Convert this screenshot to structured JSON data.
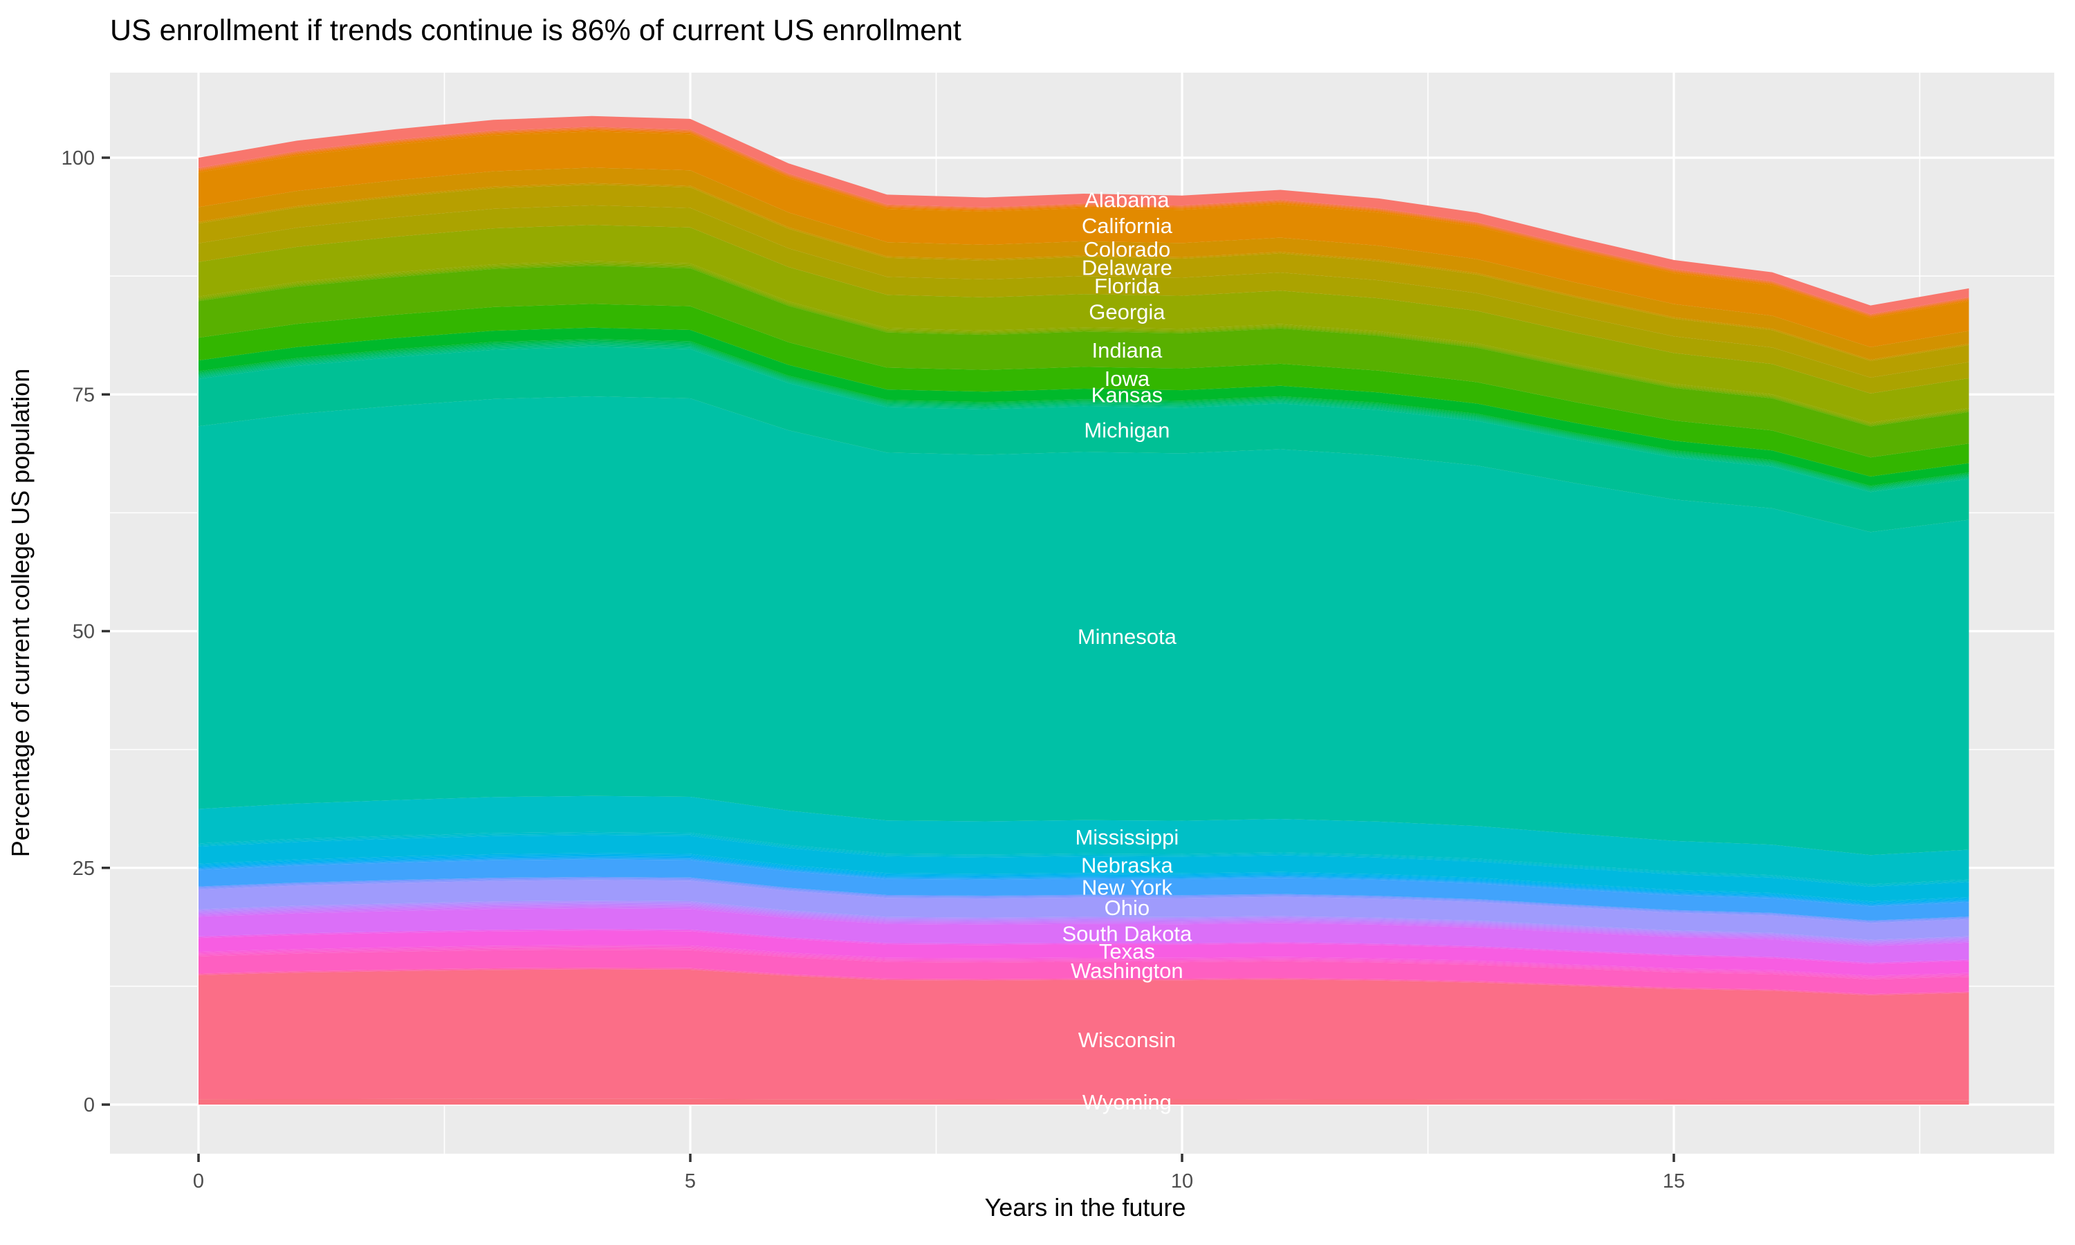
{
  "chart_data": {
    "type": "area",
    "stacked": true,
    "title": "US enrollment if trends continue is 86% of current US enrollment",
    "xlabel": "Years in the future",
    "ylabel": "Percentage of current college US population",
    "legend_position": "none",
    "grid": true,
    "colors_meta": {
      "panel_bg": "#EBEBEB",
      "grid_color": "#FFFFFF",
      "tick_mark_color": "#333333",
      "tick_label_color": "#4D4D4D",
      "title_color": "#000000",
      "state_label_color": "#FFFFFF"
    },
    "x_ticks": [
      0,
      5,
      10,
      15
    ],
    "x_minor_ticks": [
      2.5,
      7.5,
      12.5,
      17.5
    ],
    "y_ticks": [
      0,
      25,
      50,
      75,
      100
    ],
    "y_minor_ticks": [
      12.5,
      37.5,
      62.5,
      87.5
    ],
    "xlim": [
      -0.9,
      18.87
    ],
    "ylim": [
      -5.2,
      109.0
    ],
    "years": [
      0,
      1,
      2,
      3,
      4,
      5,
      6,
      7,
      8,
      9,
      10,
      11,
      12,
      13,
      14,
      15,
      16,
      17,
      18
    ],
    "total_pct_by_year": [
      100.0,
      101.8,
      103.0,
      104.0,
      104.4,
      104.1,
      99.4,
      96.1,
      95.8,
      96.2,
      96.0,
      96.6,
      95.7,
      94.2,
      91.6,
      89.2,
      87.9,
      84.4,
      86.2
    ],
    "ref_total_pct": 95.75,
    "label_x_year": 9.44,
    "series_bottom_to_top": [
      {
        "name": "Wyoming",
        "label": "Wyoming",
        "color": "#F9707F",
        "band_pct_at_ref": 0.55
      },
      {
        "name": "Wisconsin",
        "label": "Wisconsin",
        "color": "#FB6E87",
        "band_pct_at_ref": 12.55
      },
      {
        "name": "",
        "label": "",
        "color": "#FF66A8",
        "band_pct_at_ref": 0.15
      },
      {
        "name": "Washington",
        "label": "Washington",
        "color": "#FE5FC1",
        "band_pct_at_ref": 1.75
      },
      {
        "name": "",
        "label": "",
        "color": "#FD60CA",
        "band_pct_at_ref": 0.15
      },
      {
        "name": "",
        "label": "",
        "color": "#FB61D2",
        "band_pct_at_ref": 0.15
      },
      {
        "name": "",
        "label": "",
        "color": "#F95FD9",
        "band_pct_at_ref": 0.15
      },
      {
        "name": "Texas",
        "label": "Texas",
        "color": "#F75DE2",
        "band_pct_at_ref": 1.4
      },
      {
        "name": "",
        "label": "",
        "color": "#EE63EC",
        "band_pct_at_ref": 0.15
      },
      {
        "name": "South Dakota",
        "label": "South Dakota",
        "color": "#DB6FF8",
        "band_pct_at_ref": 2.0
      },
      {
        "name": "",
        "label": "",
        "color": "#D175FB",
        "band_pct_at_ref": 0.15
      },
      {
        "name": "",
        "label": "",
        "color": "#C97CFC",
        "band_pct_at_ref": 0.15
      },
      {
        "name": "",
        "label": "",
        "color": "#C183FD",
        "band_pct_at_ref": 0.15
      },
      {
        "name": "",
        "label": "",
        "color": "#B98AFE",
        "band_pct_at_ref": 0.15
      },
      {
        "name": "",
        "label": "",
        "color": "#AF92FF",
        "band_pct_at_ref": 0.15
      },
      {
        "name": "Ohio",
        "label": "Ohio",
        "color": "#9F9BFC",
        "band_pct_at_ref": 2.0
      },
      {
        "name": "",
        "label": "",
        "color": "#8B98FF",
        "band_pct_at_ref": 0.15
      },
      {
        "name": "",
        "label": "",
        "color": "#7599FF",
        "band_pct_at_ref": 0.15
      },
      {
        "name": "New York",
        "label": "New York",
        "color": "#41A3FC",
        "band_pct_at_ref": 1.7
      },
      {
        "name": "",
        "label": "",
        "color": "#2BA8F9",
        "band_pct_at_ref": 0.15
      },
      {
        "name": "",
        "label": "",
        "color": "#0FADF4",
        "band_pct_at_ref": 0.15
      },
      {
        "name": "",
        "label": "",
        "color": "#00B1EF",
        "band_pct_at_ref": 0.15
      },
      {
        "name": "",
        "label": "",
        "color": "#00B5E9",
        "band_pct_at_ref": 0.15
      },
      {
        "name": "Nebraska",
        "label": "Nebraska",
        "color": "#00B9DF",
        "band_pct_at_ref": 1.75
      },
      {
        "name": "",
        "label": "",
        "color": "#00BCD5",
        "band_pct_at_ref": 0.15
      },
      {
        "name": "",
        "label": "",
        "color": "#00BECD",
        "band_pct_at_ref": 0.15
      },
      {
        "name": "Mississippi",
        "label": "Mississippi",
        "color": "#00BFC6",
        "band_pct_at_ref": 3.5
      },
      {
        "name": "Minnesota",
        "label": "Minnesota",
        "color": "#00C1A6",
        "band_pct_at_ref": 38.7
      },
      {
        "name": "Michigan",
        "label": "Michigan",
        "color": "#00C095",
        "band_pct_at_ref": 4.8
      },
      {
        "name": "",
        "label": "",
        "color": "#00BF86",
        "band_pct_at_ref": 0.15
      },
      {
        "name": "",
        "label": "",
        "color": "#00BE78",
        "band_pct_at_ref": 0.15
      },
      {
        "name": "",
        "label": "",
        "color": "#00BD69",
        "band_pct_at_ref": 0.15
      },
      {
        "name": "",
        "label": "",
        "color": "#00BB58",
        "band_pct_at_ref": 0.15
      },
      {
        "name": "",
        "label": "",
        "color": "#00BA44",
        "band_pct_at_ref": 0.15
      },
      {
        "name": "Kansas",
        "label": "Kansas",
        "color": "#00B92B",
        "band_pct_at_ref": 1.1
      },
      {
        "name": "Iowa",
        "label": "Iowa",
        "color": "#33B600",
        "band_pct_at_ref": 2.3
      },
      {
        "name": "Indiana",
        "label": "Indiana",
        "color": "#58B000",
        "band_pct_at_ref": 3.7
      },
      {
        "name": "",
        "label": "",
        "color": "#70AE00",
        "band_pct_at_ref": 0.15
      },
      {
        "name": "",
        "label": "",
        "color": "#81AC00",
        "band_pct_at_ref": 0.15
      },
      {
        "name": "",
        "label": "",
        "color": "#8DAB00",
        "band_pct_at_ref": 0.15
      },
      {
        "name": "Georgia",
        "label": "Georgia",
        "color": "#95AA00",
        "band_pct_at_ref": 3.5
      },
      {
        "name": "Florida",
        "label": "Florida",
        "color": "#ABA300",
        "band_pct_at_ref": 1.9
      },
      {
        "name": "Delaware",
        "label": "Delaware",
        "color": "#B79F00",
        "band_pct_at_ref": 2.0
      },
      {
        "name": "",
        "label": "",
        "color": "#C69A00",
        "band_pct_at_ref": 0.15
      },
      {
        "name": "Colorado",
        "label": "Colorado",
        "color": "#D29200",
        "band_pct_at_ref": 1.5
      },
      {
        "name": "California",
        "label": "California",
        "color": "#E28A00",
        "band_pct_at_ref": 3.5
      },
      {
        "name": "",
        "label": "",
        "color": "#EA8300",
        "band_pct_at_ref": 0.15
      },
      {
        "name": "",
        "label": "",
        "color": "#F07E21",
        "band_pct_at_ref": 0.15
      },
      {
        "name": "",
        "label": "",
        "color": "#F47A45",
        "band_pct_at_ref": 0.15
      },
      {
        "name": "Alabama",
        "label": "Alabama",
        "color": "#F8766D",
        "band_pct_at_ref": 1.05
      }
    ]
  }
}
